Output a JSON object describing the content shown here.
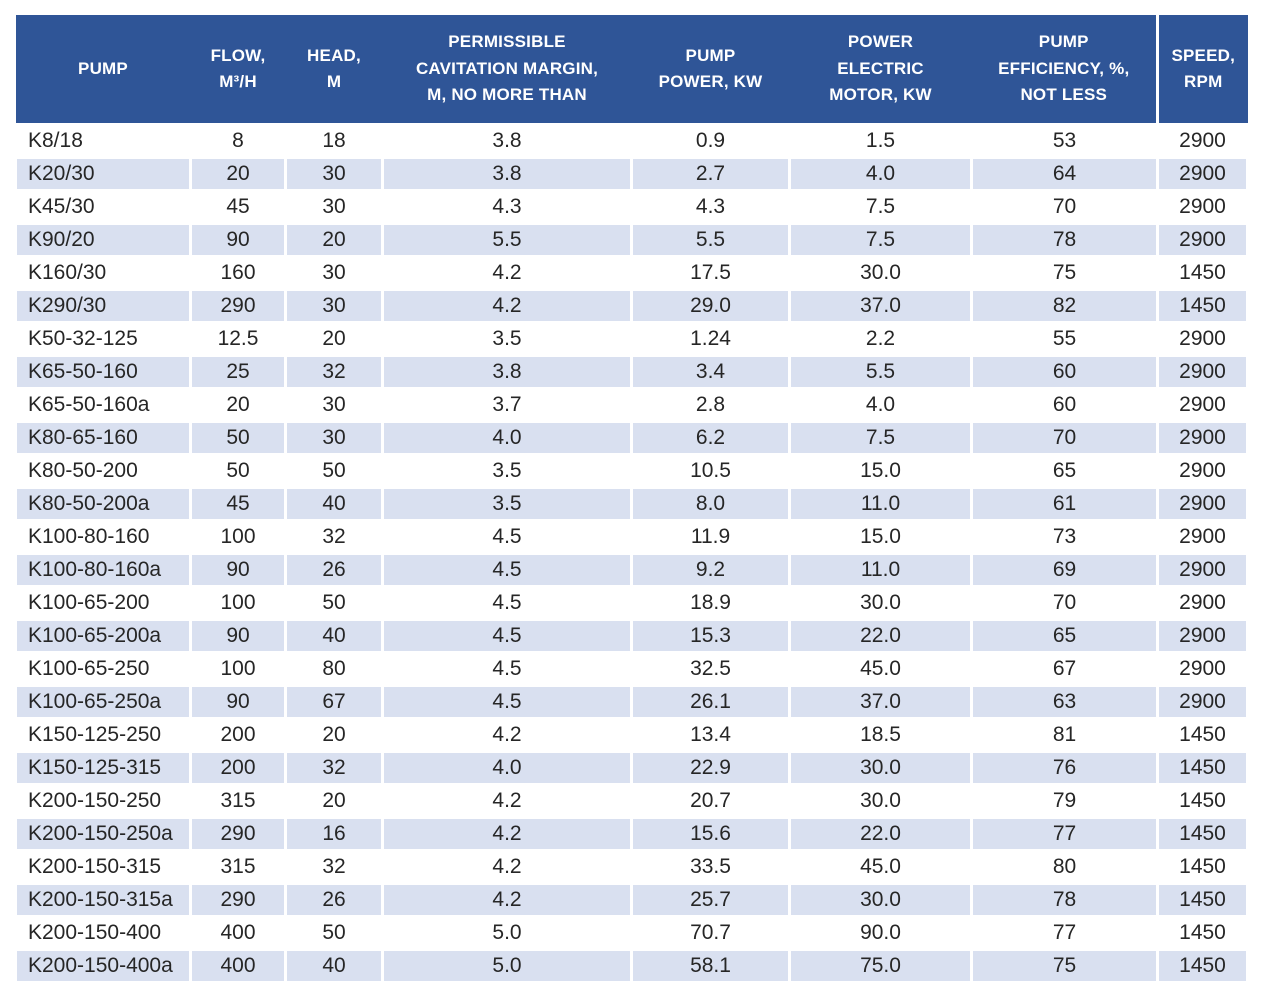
{
  "colors": {
    "header_bg": "#2F5597",
    "header_text": "#FFFFFF",
    "stripe": "#D9E0F0",
    "text": "#262626"
  },
  "chart_data": {
    "type": "table",
    "columns": [
      "PUMP",
      "FLOW,\nM³/H",
      "HEAD,\nM",
      "PERMISSIBLE\nCAVITATION MARGIN,\nM, NO MORE THAN",
      "PUMP\nPOWER, KW",
      "POWER\nELECTRIC\nMOTOR, KW",
      "PUMP\nEFFICIENCY, %,\nNOT LESS",
      "SPEED,\nRPM"
    ],
    "rows": [
      [
        "K8/18",
        "8",
        "18",
        "3.8",
        "0.9",
        "1.5",
        "53",
        "2900"
      ],
      [
        "K20/30",
        "20",
        "30",
        "3.8",
        "2.7",
        "4.0",
        "64",
        "2900"
      ],
      [
        "K45/30",
        "45",
        "30",
        "4.3",
        "4.3",
        "7.5",
        "70",
        "2900"
      ],
      [
        "K90/20",
        "90",
        "20",
        "5.5",
        "5.5",
        "7.5",
        "78",
        "2900"
      ],
      [
        "K160/30",
        "160",
        "30",
        "4.2",
        "17.5",
        "30.0",
        "75",
        "1450"
      ],
      [
        "K290/30",
        "290",
        "30",
        "4.2",
        "29.0",
        "37.0",
        "82",
        "1450"
      ],
      [
        "K50-32-125",
        "12.5",
        "20",
        "3.5",
        "1.24",
        "2.2",
        "55",
        "2900"
      ],
      [
        "K65-50-160",
        "25",
        "32",
        "3.8",
        "3.4",
        "5.5",
        "60",
        "2900"
      ],
      [
        "K65-50-160a",
        "20",
        "30",
        "3.7",
        "2.8",
        "4.0",
        "60",
        "2900"
      ],
      [
        "K80-65-160",
        "50",
        "30",
        "4.0",
        "6.2",
        "7.5",
        "70",
        "2900"
      ],
      [
        "K80-50-200",
        "50",
        "50",
        "3.5",
        "10.5",
        "15.0",
        "65",
        "2900"
      ],
      [
        "K80-50-200a",
        "45",
        "40",
        "3.5",
        "8.0",
        "11.0",
        "61",
        "2900"
      ],
      [
        "K100-80-160",
        "100",
        "32",
        "4.5",
        "11.9",
        "15.0",
        "73",
        "2900"
      ],
      [
        "K100-80-160a",
        "90",
        "26",
        "4.5",
        "9.2",
        "11.0",
        "69",
        "2900"
      ],
      [
        "K100-65-200",
        "100",
        "50",
        "4.5",
        "18.9",
        "30.0",
        "70",
        "2900"
      ],
      [
        "K100-65-200a",
        "90",
        "40",
        "4.5",
        "15.3",
        "22.0",
        "65",
        "2900"
      ],
      [
        "K100-65-250",
        "100",
        "80",
        "4.5",
        "32.5",
        "45.0",
        "67",
        "2900"
      ],
      [
        "K100-65-250a",
        "90",
        "67",
        "4.5",
        "26.1",
        "37.0",
        "63",
        "2900"
      ],
      [
        "K150-125-250",
        "200",
        "20",
        "4.2",
        "13.4",
        "18.5",
        "81",
        "1450"
      ],
      [
        "K150-125-315",
        "200",
        "32",
        "4.0",
        "22.9",
        "30.0",
        "76",
        "1450"
      ],
      [
        "K200-150-250",
        "315",
        "20",
        "4.2",
        "20.7",
        "30.0",
        "79",
        "1450"
      ],
      [
        "K200-150-250a",
        "290",
        "16",
        "4.2",
        "15.6",
        "22.0",
        "77",
        "1450"
      ],
      [
        "K200-150-315",
        "315",
        "32",
        "4.2",
        "33.5",
        "45.0",
        "80",
        "1450"
      ],
      [
        "K200-150-315a",
        "290",
        "26",
        "4.2",
        "25.7",
        "30.0",
        "78",
        "1450"
      ],
      [
        "K200-150-400",
        "400",
        "50",
        "5.0",
        "70.7",
        "90.0",
        "77",
        "1450"
      ],
      [
        "K200-150-400a",
        "400",
        "40",
        "5.0",
        "58.1",
        "75.0",
        "75",
        "1450"
      ]
    ]
  }
}
